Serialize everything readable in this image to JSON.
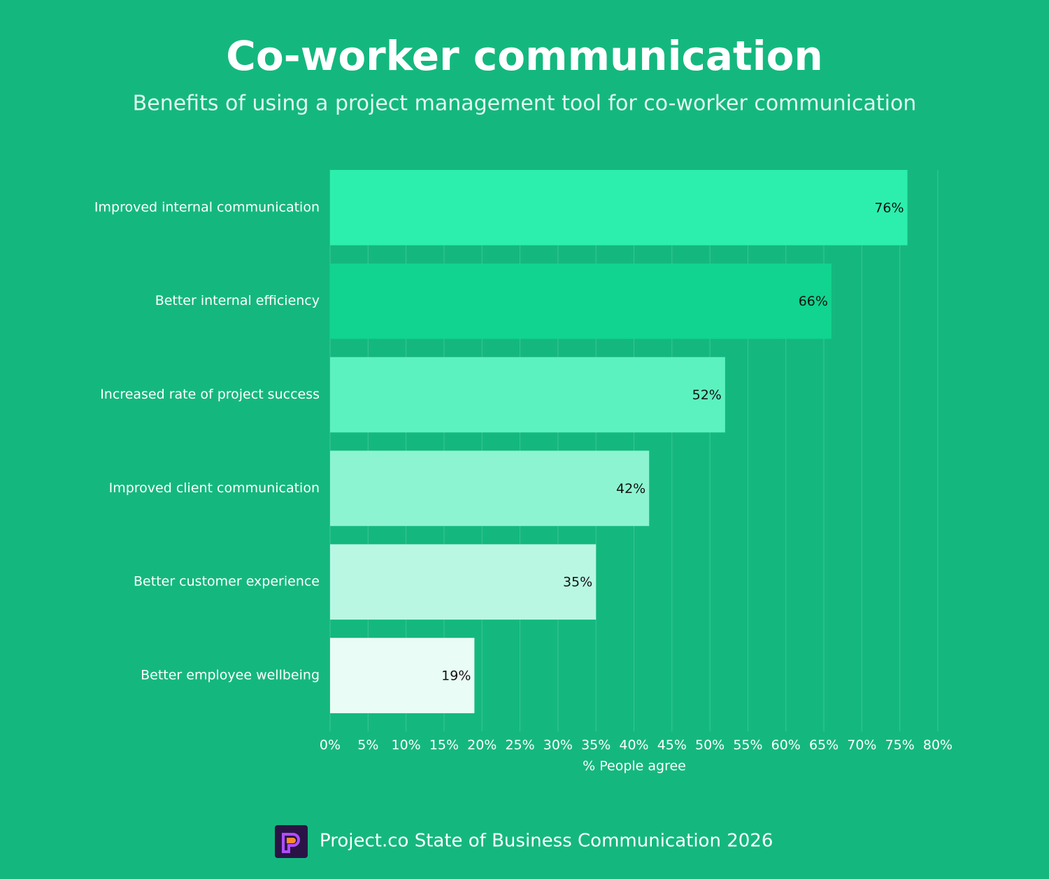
{
  "chart_data": {
    "type": "hbar",
    "title": "Co-worker communication",
    "subtitle": "Benefits of using a project management tool for co-worker communication",
    "categories": [
      "Improved internal communication",
      "Better internal efficiency",
      "Increased rate of project success",
      "Improved client communication",
      "Better customer experience",
      "Better employee wellbeing"
    ],
    "values": [
      76,
      66,
      52,
      42,
      35,
      19
    ],
    "value_labels": [
      "76%",
      "66%",
      "52%",
      "42%",
      "35%",
      "19%"
    ],
    "colors": [
      "#2cefae",
      "#10d48f",
      "#5cf2bf",
      "#8cf4d1",
      "#b9f7e3",
      "#e9fcf5"
    ],
    "xlim": [
      0,
      80
    ],
    "xticks": [
      {
        "value": 0,
        "label": "0%"
      },
      {
        "value": 5,
        "label": "5%"
      },
      {
        "value": 10,
        "label": "10%"
      },
      {
        "value": 15,
        "label": "15%"
      },
      {
        "value": 20,
        "label": "20%"
      },
      {
        "value": 25,
        "label": "25%"
      },
      {
        "value": 30,
        "label": "30%"
      },
      {
        "value": 35,
        "label": "35%"
      },
      {
        "value": 40,
        "label": "40%"
      },
      {
        "value": 45,
        "label": "45%"
      },
      {
        "value": 50,
        "label": "50%"
      },
      {
        "value": 55,
        "label": "55%"
      },
      {
        "value": 60,
        "label": "60%"
      },
      {
        "value": 65,
        "label": "65%"
      },
      {
        "value": 70,
        "label": "70%"
      },
      {
        "value": 75,
        "label": "75%"
      },
      {
        "value": 80,
        "label": "80%"
      }
    ],
    "xlabel": "% People agree",
    "grid": true,
    "footer": "Project.co State of Business Communication 2026"
  }
}
